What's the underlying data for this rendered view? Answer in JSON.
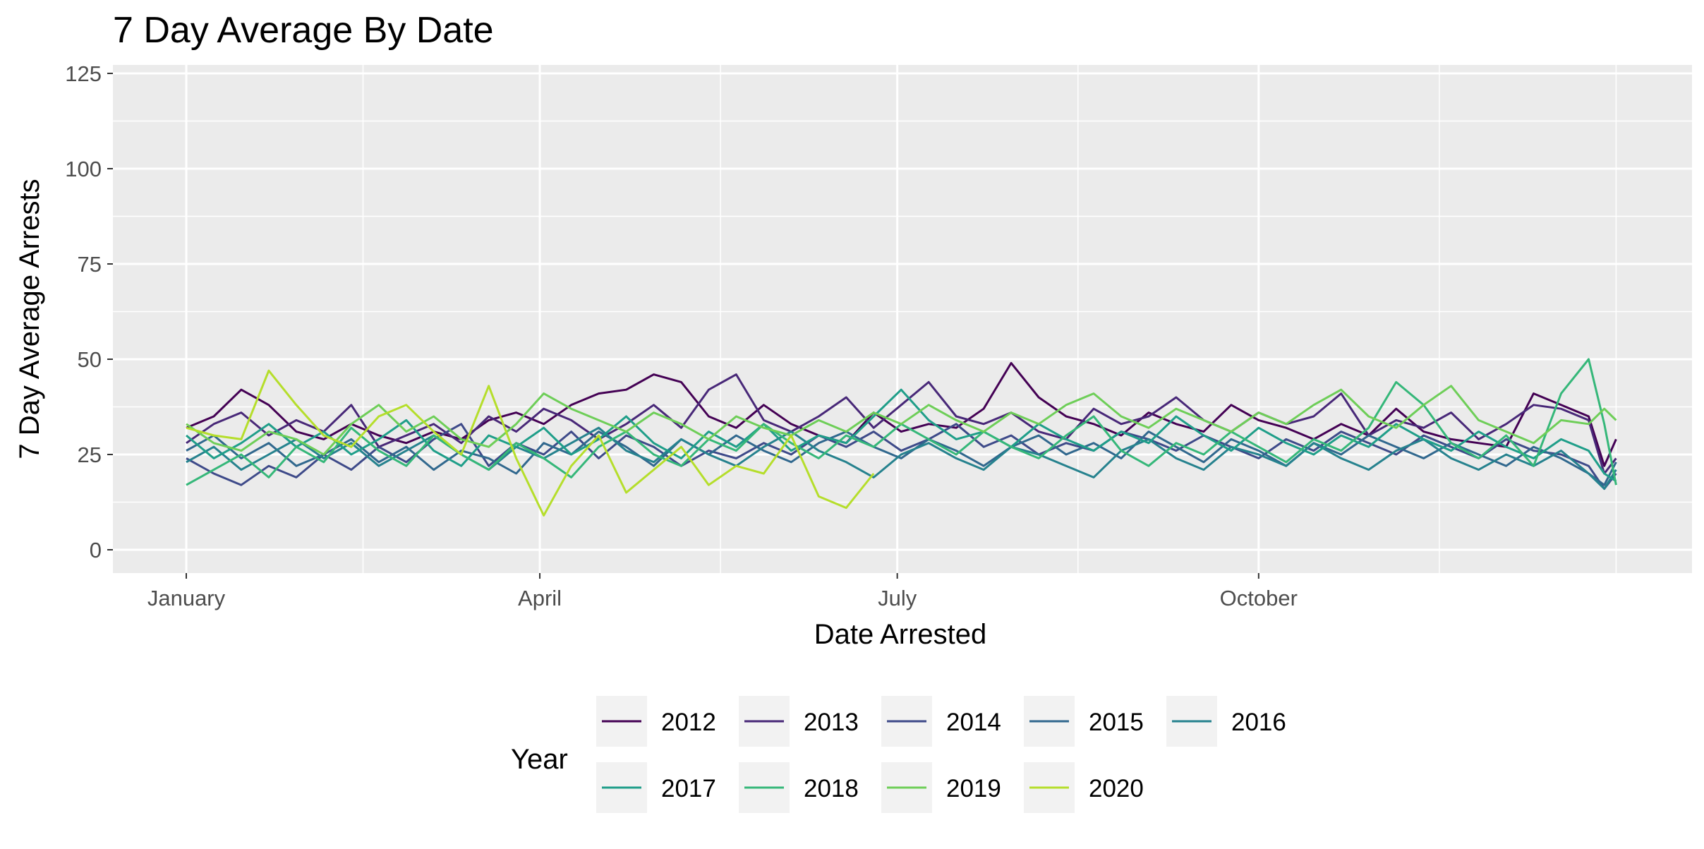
{
  "chart_data": {
    "type": "line",
    "title": "7 Day Average By Date",
    "xlabel": "Date Arrested",
    "ylabel": "7 Day Average Arrests",
    "x_unit": "day of year",
    "x_range": [
      1,
      366
    ],
    "ylim": [
      -5,
      125
    ],
    "y_ticks": [
      0,
      25,
      50,
      75,
      100,
      125
    ],
    "x_ticks": [
      {
        "day": 1,
        "label": "January"
      },
      {
        "day": 91,
        "label": "April"
      },
      {
        "day": 182,
        "label": "July"
      },
      {
        "day": 274,
        "label": "October"
      }
    ],
    "x_minor_days": [
      46,
      137,
      228,
      320,
      365
    ],
    "grid": true,
    "legend_title": "Year",
    "legend_position": "bottom",
    "series": [
      {
        "name": "2012",
        "color": "#440154",
        "x": [
          1,
          8,
          15,
          22,
          29,
          36,
          43,
          50,
          57,
          64,
          71,
          78,
          85,
          92,
          99,
          106,
          113,
          120,
          127,
          134,
          141,
          148,
          155,
          162,
          169,
          176,
          183,
          190,
          197,
          204,
          211,
          218,
          225,
          232,
          239,
          246,
          253,
          260,
          267,
          274,
          281,
          288,
          295,
          302,
          309,
          316,
          323,
          330,
          337,
          344,
          351,
          358,
          362,
          365
        ],
        "values": [
          32,
          35,
          42,
          38,
          31,
          29,
          33,
          30,
          28,
          31,
          29,
          34,
          36,
          33,
          38,
          41,
          42,
          46,
          44,
          35,
          32,
          38,
          33,
          30,
          28,
          36,
          31,
          33,
          32,
          37,
          49,
          40,
          35,
          33,
          30,
          36,
          33,
          31,
          38,
          34,
          32,
          29,
          33,
          30,
          37,
          31,
          29,
          28,
          27,
          41,
          38,
          35,
          22,
          29
        ]
      },
      {
        "name": "2013",
        "color": "#482878",
        "x": [
          1,
          8,
          15,
          22,
          29,
          36,
          43,
          50,
          57,
          64,
          71,
          78,
          85,
          92,
          99,
          106,
          113,
          120,
          127,
          134,
          141,
          148,
          155,
          162,
          169,
          176,
          183,
          190,
          197,
          204,
          211,
          218,
          225,
          232,
          239,
          246,
          253,
          260,
          267,
          274,
          281,
          288,
          295,
          302,
          309,
          316,
          323,
          330,
          337,
          344,
          351,
          358,
          362,
          365
        ],
        "values": [
          28,
          33,
          36,
          30,
          34,
          31,
          38,
          27,
          30,
          33,
          28,
          35,
          31,
          37,
          34,
          29,
          33,
          38,
          32,
          42,
          46,
          34,
          31,
          35,
          40,
          32,
          38,
          44,
          35,
          33,
          36,
          31,
          29,
          37,
          33,
          35,
          40,
          34,
          31,
          36,
          33,
          35,
          41,
          30,
          34,
          32,
          36,
          29,
          33,
          38,
          37,
          34,
          20,
          24
        ]
      },
      {
        "name": "2014",
        "color": "#3e4a89",
        "x": [
          1,
          8,
          15,
          22,
          29,
          36,
          43,
          50,
          57,
          64,
          71,
          78,
          85,
          92,
          99,
          106,
          113,
          120,
          127,
          134,
          141,
          148,
          155,
          162,
          169,
          176,
          183,
          190,
          197,
          204,
          211,
          218,
          225,
          232,
          239,
          246,
          253,
          260,
          267,
          274,
          281,
          288,
          295,
          302,
          309,
          316,
          323,
          330,
          337,
          344,
          351,
          358,
          362,
          365
        ],
        "values": [
          24,
          20,
          17,
          22,
          19,
          25,
          21,
          27,
          23,
          29,
          33,
          22,
          28,
          25,
          31,
          24,
          30,
          27,
          22,
          26,
          24,
          28,
          25,
          30,
          27,
          31,
          26,
          29,
          33,
          27,
          30,
          25,
          28,
          26,
          31,
          29,
          26,
          30,
          27,
          24,
          29,
          26,
          31,
          28,
          25,
          30,
          27,
          24,
          29,
          26,
          25,
          22,
          16,
          20
        ]
      },
      {
        "name": "2015",
        "color": "#31688e",
        "x": [
          1,
          8,
          15,
          22,
          29,
          36,
          43,
          50,
          57,
          64,
          71,
          78,
          85,
          92,
          99,
          106,
          113,
          120,
          127,
          134,
          141,
          148,
          155,
          162,
          169,
          176,
          183,
          190,
          197,
          204,
          211,
          218,
          225,
          232,
          239,
          246,
          253,
          260,
          267,
          274,
          281,
          288,
          295,
          302,
          309,
          316,
          323,
          330,
          337,
          344,
          351,
          358,
          362,
          365
        ],
        "values": [
          26,
          30,
          24,
          28,
          22,
          25,
          29,
          23,
          27,
          21,
          26,
          24,
          20,
          28,
          25,
          31,
          27,
          22,
          29,
          25,
          30,
          26,
          23,
          28,
          31,
          27,
          24,
          29,
          26,
          22,
          27,
          30,
          25,
          28,
          24,
          31,
          27,
          23,
          29,
          26,
          22,
          28,
          25,
          30,
          27,
          24,
          28,
          25,
          22,
          27,
          24,
          20,
          17,
          23
        ]
      },
      {
        "name": "2016",
        "color": "#26828e",
        "x": [
          1,
          8,
          15,
          22,
          29,
          36,
          43,
          50,
          57,
          64,
          71,
          78,
          85,
          92,
          99,
          106,
          113,
          120,
          127,
          134,
          141,
          148,
          155,
          162,
          169,
          176,
          183,
          190,
          197,
          204,
          211,
          218,
          225,
          232,
          239,
          246,
          253,
          260,
          267,
          274,
          281,
          288,
          295,
          302,
          309,
          316,
          323,
          330,
          337,
          344,
          351,
          358,
          362,
          365
        ],
        "values": [
          23,
          27,
          21,
          25,
          29,
          24,
          28,
          22,
          26,
          30,
          25,
          21,
          27,
          24,
          28,
          32,
          26,
          23,
          29,
          25,
          22,
          27,
          31,
          26,
          23,
          19,
          25,
          28,
          24,
          21,
          27,
          25,
          22,
          19,
          26,
          29,
          24,
          21,
          27,
          25,
          22,
          28,
          24,
          21,
          26,
          29,
          24,
          21,
          25,
          22,
          26,
          20,
          16,
          21
        ]
      },
      {
        "name": "2017",
        "color": "#1f9e89",
        "x": [
          1,
          8,
          15,
          22,
          29,
          36,
          43,
          50,
          57,
          64,
          71,
          78,
          85,
          92,
          99,
          106,
          113,
          120,
          127,
          134,
          141,
          148,
          155,
          162,
          169,
          176,
          183,
          190,
          197,
          204,
          211,
          218,
          225,
          232,
          239,
          246,
          253,
          260,
          267,
          274,
          281,
          288,
          295,
          302,
          309,
          316,
          323,
          330,
          337,
          344,
          351,
          358,
          362,
          365
        ],
        "values": [
          30,
          24,
          28,
          33,
          27,
          31,
          25,
          29,
          34,
          26,
          22,
          30,
          27,
          32,
          25,
          29,
          35,
          28,
          24,
          31,
          27,
          33,
          26,
          30,
          28,
          35,
          42,
          34,
          29,
          31,
          27,
          33,
          29,
          26,
          31,
          28,
          35,
          30,
          26,
          32,
          28,
          25,
          30,
          27,
          33,
          29,
          26,
          31,
          27,
          24,
          29,
          26,
          20,
          18
        ]
      },
      {
        "name": "2018",
        "color": "#35b779",
        "x": [
          1,
          8,
          15,
          22,
          29,
          36,
          43,
          50,
          57,
          64,
          71,
          78,
          85,
          92,
          99,
          106,
          113,
          120,
          127,
          134,
          141,
          148,
          155,
          162,
          169,
          176,
          183,
          190,
          197,
          204,
          211,
          218,
          225,
          232,
          239,
          246,
          253,
          260,
          267,
          274,
          281,
          288,
          295,
          302,
          309,
          316,
          323,
          330,
          337,
          344,
          351,
          358,
          362,
          365
        ],
        "values": [
          17,
          21,
          25,
          19,
          27,
          23,
          32,
          26,
          22,
          30,
          25,
          21,
          28,
          24,
          19,
          27,
          31,
          25,
          22,
          29,
          26,
          33,
          28,
          24,
          30,
          27,
          33,
          29,
          25,
          31,
          27,
          24,
          30,
          35,
          26,
          22,
          28,
          25,
          31,
          27,
          23,
          29,
          26,
          32,
          44,
          38,
          28,
          24,
          30,
          22,
          41,
          50,
          33,
          17
        ]
      },
      {
        "name": "2019",
        "color": "#6ece58",
        "x": [
          1,
          8,
          15,
          22,
          29,
          36,
          43,
          50,
          57,
          64,
          71,
          78,
          85,
          92,
          99,
          106,
          113,
          120,
          127,
          134,
          141,
          148,
          155,
          162,
          169,
          176,
          183,
          190,
          197,
          204,
          211,
          218,
          225,
          232,
          239,
          246,
          253,
          260,
          267,
          274,
          281,
          288,
          295,
          302,
          309,
          316,
          323,
          330,
          337,
          344,
          351,
          358,
          362,
          365
        ],
        "values": [
          33,
          28,
          26,
          31,
          29,
          25,
          33,
          38,
          31,
          35,
          29,
          27,
          33,
          41,
          37,
          34,
          31,
          36,
          33,
          29,
          35,
          32,
          30,
          34,
          31,
          36,
          33,
          38,
          34,
          31,
          36,
          33,
          38,
          41,
          35,
          32,
          37,
          34,
          31,
          36,
          33,
          38,
          42,
          35,
          32,
          38,
          43,
          34,
          31,
          28,
          34,
          33,
          37,
          34
        ]
      },
      {
        "name": "2020",
        "color": "#b5de2b",
        "x": [
          1,
          8,
          15,
          22,
          29,
          36,
          43,
          50,
          57,
          64,
          71,
          78,
          85,
          92,
          99,
          106,
          113,
          120,
          127,
          134,
          141,
          148,
          155,
          162,
          169,
          176
        ],
        "values": [
          32,
          30,
          29,
          47,
          38,
          30,
          27,
          35,
          38,
          31,
          25,
          43,
          24,
          9,
          22,
          30,
          15,
          21,
          27,
          17,
          22,
          20,
          30,
          14,
          11,
          20
        ]
      }
    ]
  }
}
